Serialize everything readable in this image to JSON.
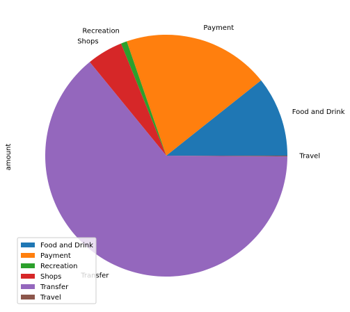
{
  "chart_data": {
    "type": "pie",
    "ylabel": "amount",
    "labels": [
      "Food and Drink",
      "Payment",
      "Recreation",
      "Shops",
      "Transfer",
      "Travel"
    ],
    "values": [
      10.7,
      19.6,
      0.8,
      4.8,
      64.0,
      0.1
    ],
    "colors": [
      "#1f77b4",
      "#ff7f0e",
      "#2ca02c",
      "#d62728",
      "#9467bd",
      "#8c564b"
    ],
    "start_angle_deg": 0,
    "direction": "counterclockwise",
    "legend": {
      "placement": "lower-left",
      "entries": [
        "Food and Drink",
        "Payment",
        "Recreation",
        "Shops",
        "Transfer",
        "Travel"
      ]
    }
  }
}
